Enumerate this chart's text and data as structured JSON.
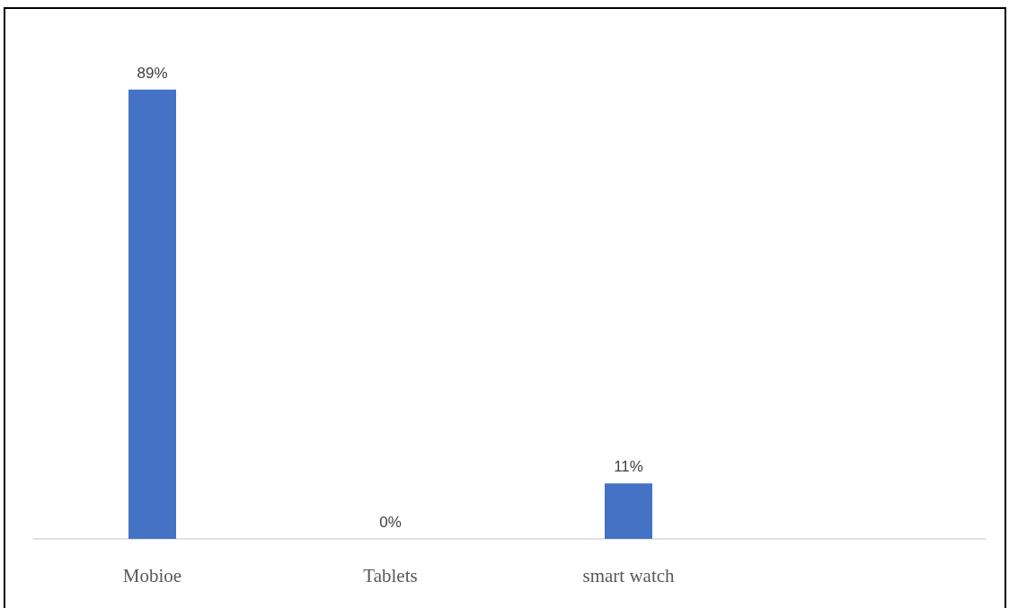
{
  "chart_data": {
    "type": "bar",
    "categories": [
      "Mobioe",
      "Tablets",
      "smart watch",
      null
    ],
    "values": [
      89,
      0,
      11,
      null
    ],
    "value_labels": [
      "89%",
      "0%",
      "11%",
      null
    ],
    "color": "#4472c4"
  }
}
